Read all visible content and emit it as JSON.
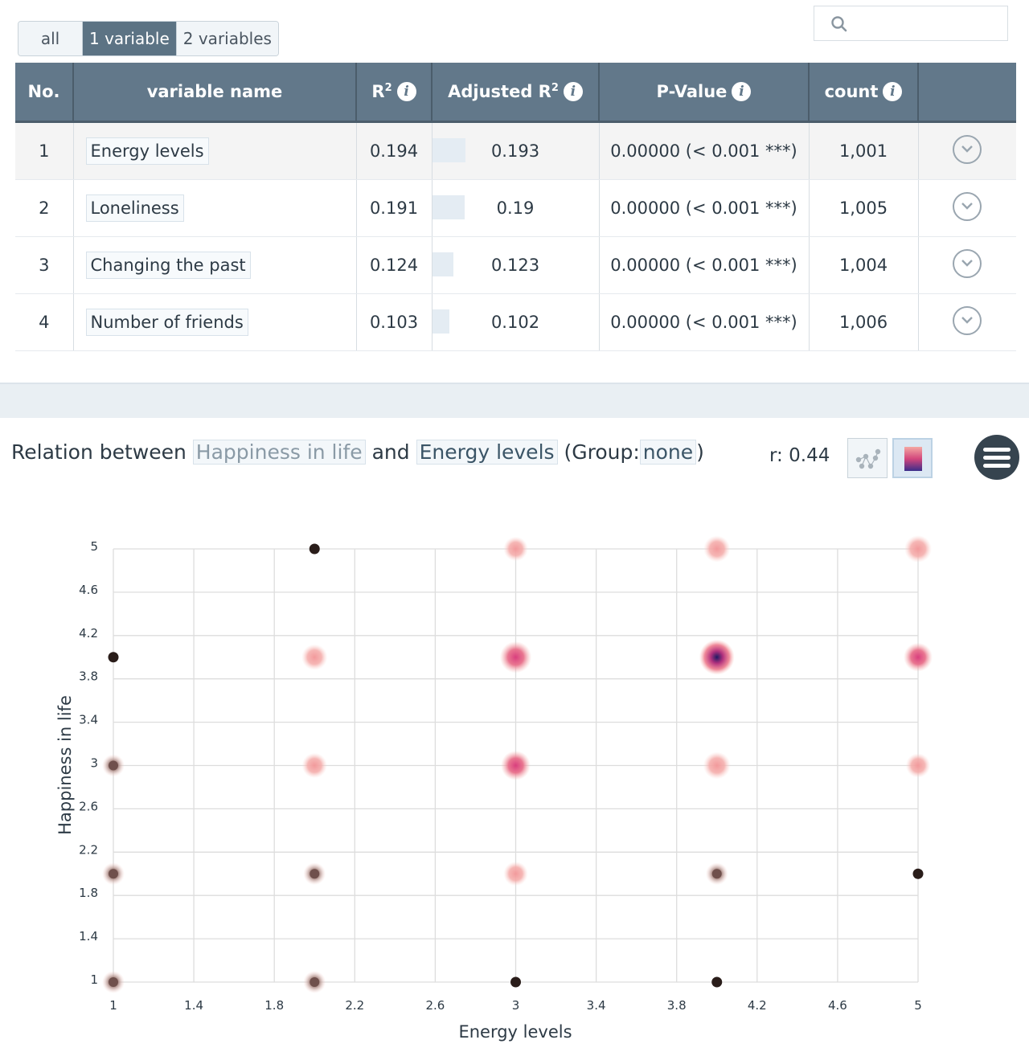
{
  "filter_tabs": [
    "all",
    "1 variable",
    "2 variables"
  ],
  "active_filter_index": 1,
  "search": {
    "placeholder": "",
    "value": ""
  },
  "table": {
    "headers": {
      "no": "No.",
      "variable_name": "variable name",
      "r2": "R",
      "adjusted_r2": "Adjusted R",
      "p_value": "P-Value",
      "count": "count"
    },
    "superscript": "2",
    "info_glyph": "i",
    "rows": [
      {
        "no": "1",
        "variable": "Energy levels",
        "r2": "0.194",
        "adjusted_r2": "0.193",
        "adjusted_bar_fraction": 0.193,
        "p_value": "0.00000 (< 0.001 ***)",
        "count": "1,001"
      },
      {
        "no": "2",
        "variable": "Loneliness",
        "r2": "0.191",
        "adjusted_r2": "0.19",
        "adjusted_bar_fraction": 0.19,
        "p_value": "0.00000 (< 0.001 ***)",
        "count": "1,005"
      },
      {
        "no": "3",
        "variable": "Changing the past",
        "r2": "0.124",
        "adjusted_r2": "0.123",
        "adjusted_bar_fraction": 0.123,
        "p_value": "0.00000 (< 0.001 ***)",
        "count": "1,004"
      },
      {
        "no": "4",
        "variable": "Number of friends",
        "r2": "0.103",
        "adjusted_r2": "0.102",
        "adjusted_bar_fraction": 0.102,
        "p_value": "0.00000 (< 0.001 ***)",
        "count": "1,006"
      }
    ]
  },
  "relation": {
    "prefix": "Relation between",
    "dependent": "Happiness in life",
    "connector": "and",
    "independent": "Energy levels",
    "group_label": "(Group:",
    "group_value": "none",
    "group_close": ")",
    "r_label": "r:",
    "r_value": "0.44"
  },
  "icons": {
    "search": "search-icon",
    "info": "info-icon",
    "expand": "chevron-down-icon",
    "scatter_toggle": "scatter-plot-icon",
    "density_toggle": "color-gradient-icon",
    "menu": "hamburger-menu-icon"
  },
  "colors": {
    "header_bg": "#62788a",
    "active_tab": "#5c7384",
    "density_low": "#f4a7a2",
    "density_mid": "#d2467c",
    "density_high": "#1e1a63",
    "sparse_point": "#2a1d1a"
  },
  "chart_data": {
    "type": "scatter",
    "xlabel": "Energy levels",
    "ylabel": "Happiness in life",
    "xlim": [
      1,
      5
    ],
    "ylim": [
      1,
      5
    ],
    "x_ticks": [
      "1",
      "1.4",
      "1.8",
      "2.2",
      "2.6",
      "3",
      "3.4",
      "3.8",
      "4.2",
      "4.6",
      "5"
    ],
    "y_ticks": [
      "1",
      "1.4",
      "1.8",
      "2.2",
      "2.6",
      "3",
      "3.4",
      "3.8",
      "4.2",
      "4.6",
      "5"
    ],
    "grid": true,
    "points": [
      {
        "x": 1,
        "y": 1,
        "density": 0.05
      },
      {
        "x": 2,
        "y": 1,
        "density": 0.05
      },
      {
        "x": 3,
        "y": 1,
        "density": 0.0
      },
      {
        "x": 4,
        "y": 1,
        "density": 0.0
      },
      {
        "x": 1,
        "y": 2,
        "density": 0.12
      },
      {
        "x": 2,
        "y": 2,
        "density": 0.15
      },
      {
        "x": 3,
        "y": 2,
        "density": 0.25
      },
      {
        "x": 4,
        "y": 2,
        "density": 0.08
      },
      {
        "x": 5,
        "y": 2,
        "density": 0.0
      },
      {
        "x": 1,
        "y": 3,
        "density": 0.15
      },
      {
        "x": 2,
        "y": 3,
        "density": 0.3
      },
      {
        "x": 3,
        "y": 3,
        "density": 0.6
      },
      {
        "x": 4,
        "y": 3,
        "density": 0.45
      },
      {
        "x": 5,
        "y": 3,
        "density": 0.25
      },
      {
        "x": 1,
        "y": 4,
        "density": 0.0
      },
      {
        "x": 2,
        "y": 4,
        "density": 0.35
      },
      {
        "x": 3,
        "y": 4,
        "density": 0.75
      },
      {
        "x": 4,
        "y": 4,
        "density": 1.0
      },
      {
        "x": 5,
        "y": 4,
        "density": 0.55
      },
      {
        "x": 2,
        "y": 5,
        "density": 0.0
      },
      {
        "x": 3,
        "y": 5,
        "density": 0.25
      },
      {
        "x": 4,
        "y": 5,
        "density": 0.4
      },
      {
        "x": 5,
        "y": 5,
        "density": 0.45
      }
    ]
  }
}
